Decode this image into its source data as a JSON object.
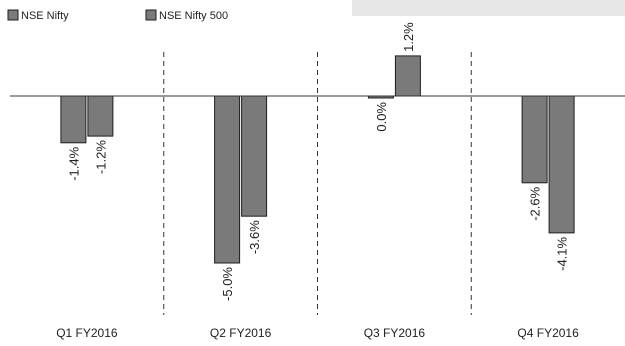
{
  "chart_data": {
    "type": "bar",
    "title": "",
    "xlabel": "",
    "ylabel": "",
    "categories": [
      "Q1 FY2016",
      "Q2 FY2016",
      "Q3 FY2016",
      "Q4 FY2016"
    ],
    "series": [
      {
        "name": "NSE Nifty",
        "values": [
          -1.4,
          -5.0,
          0.0,
          -2.6
        ],
        "labels": [
          "-1.4%",
          "-5.0%",
          "0.0%",
          "-2.6%"
        ]
      },
      {
        "name": "NSE Nifty 500",
        "values": [
          -1.2,
          -3.6,
          1.2,
          -4.1
        ],
        "labels": [
          "-1.2%",
          "-3.6%",
          "1.2%",
          "-4.1%"
        ]
      }
    ],
    "ylim": [
      -5.0,
      1.2
    ],
    "grid": false,
    "legend": "top-left",
    "category_separators": "dashed",
    "colors": {
      "bar_fill": "#7a7a7a",
      "bar_stroke": "#1f1f1f",
      "axis": "#333333",
      "separator": "#333333"
    }
  }
}
